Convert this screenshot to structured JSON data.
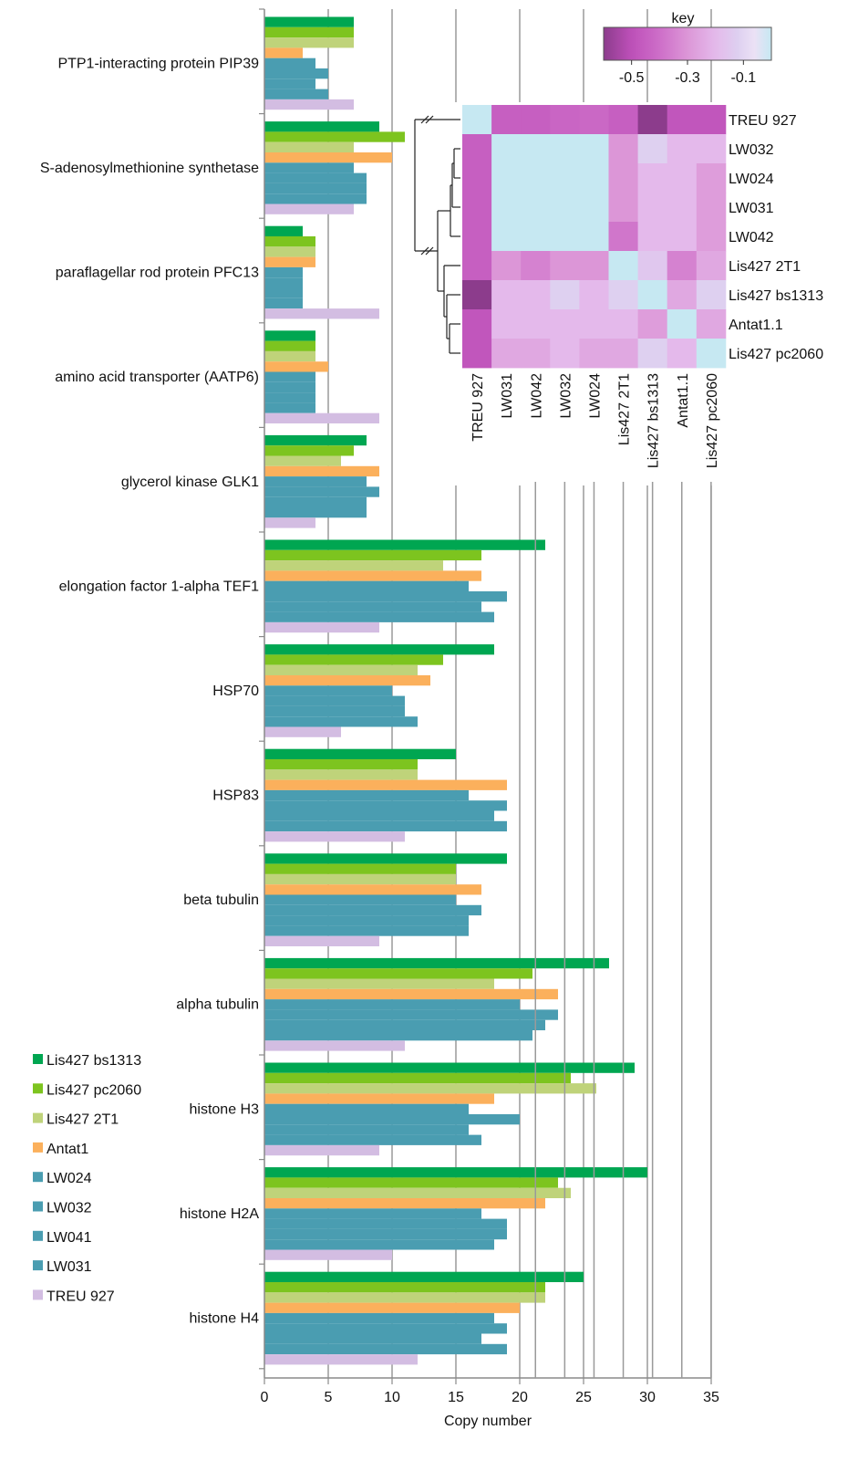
{
  "chart_data": [
    {
      "type": "bar",
      "orientation": "horizontal",
      "xlabel": "Copy number",
      "xlim": [
        0,
        35
      ],
      "xticks": [
        "0",
        "5",
        "10",
        "15",
        "20",
        "25",
        "30",
        "35"
      ],
      "grid": "vertical",
      "legend_position": "bottom-left",
      "categories": [
        "PTP1-interacting protein PIP39",
        "S-adenosylmethionine synthetase",
        "paraflagellar rod protein PFC13",
        "amino acid transporter (AATP6)",
        "glycerol kinase GLK1",
        "elongation factor 1-alpha TEF1",
        "HSP70",
        "HSP83",
        "beta tubulin",
        "alpha tubulin",
        "histone H3",
        "histone H2A",
        "histone H4"
      ],
      "series": [
        {
          "name": "Lis427 bs1313",
          "color": "#00a651",
          "values": [
            7,
            9,
            3,
            4,
            8,
            22,
            18,
            15,
            19,
            27,
            29,
            30,
            25
          ]
        },
        {
          "name": "Lis427 pc2060",
          "color": "#7dc41f",
          "values": [
            7,
            11,
            4,
            4,
            7,
            17,
            14,
            12,
            15,
            21,
            24,
            23,
            22
          ]
        },
        {
          "name": "Lis427 2T1",
          "color": "#bfd37a",
          "values": [
            7,
            7,
            4,
            4,
            6,
            14,
            12,
            12,
            15,
            18,
            26,
            24,
            22
          ]
        },
        {
          "name": "Antat1",
          "color": "#fbb05c",
          "values": [
            3,
            10,
            4,
            5,
            9,
            17,
            13,
            19,
            17,
            23,
            18,
            22,
            20
          ]
        },
        {
          "name": "LW024",
          "color": "#4a9db1",
          "values": [
            4,
            7,
            3,
            4,
            8,
            16,
            10,
            16,
            15,
            20,
            16,
            17,
            18
          ]
        },
        {
          "name": "LW032",
          "color": "#4a9db1",
          "values": [
            5,
            8,
            3,
            4,
            9,
            19,
            11,
            19,
            17,
            23,
            20,
            19,
            19
          ]
        },
        {
          "name": "LW041",
          "color": "#4a9db1",
          "values": [
            4,
            8,
            3,
            4,
            8,
            17,
            11,
            18,
            16,
            22,
            16,
            19,
            17
          ]
        },
        {
          "name": "LW031",
          "color": "#4a9db1",
          "values": [
            5,
            8,
            3,
            4,
            8,
            18,
            12,
            19,
            16,
            21,
            17,
            18,
            19
          ]
        },
        {
          "name": "TREU 927",
          "color": "#d3bde2",
          "values": [
            7,
            7,
            9,
            9,
            4,
            9,
            6,
            11,
            9,
            11,
            9,
            10,
            12
          ]
        }
      ]
    },
    {
      "type": "heatmap",
      "key_title": "key",
      "key_ticks": [
        "-0.5",
        "-0.3",
        "-0.1"
      ],
      "key_range": [
        -0.6,
        0.0
      ],
      "column_labels": [
        "TREU 927",
        "LW031",
        "LW042",
        "LW032",
        "LW024",
        "Lis427 2T1",
        "Lis427 bs1313",
        "Antat1.1",
        "Lis427 pc2060"
      ],
      "row_labels": [
        "TREU 927",
        "LW032",
        "LW024",
        "LW031",
        "LW042",
        "Lis427 2T1",
        "Lis427 bs1313",
        "Antat1.1",
        "Lis427 pc2060"
      ],
      "values": [
        [
          0.0,
          -0.45,
          -0.45,
          -0.43,
          -0.42,
          -0.45,
          -0.6,
          -0.48,
          -0.48
        ],
        [
          -0.45,
          0.0,
          0.0,
          0.0,
          0.0,
          -0.3,
          -0.12,
          -0.2,
          -0.2
        ],
        [
          -0.45,
          0.0,
          0.0,
          0.0,
          0.0,
          -0.3,
          -0.2,
          -0.2,
          -0.28
        ],
        [
          -0.45,
          0.0,
          0.0,
          0.0,
          0.0,
          -0.3,
          -0.2,
          -0.2,
          -0.28
        ],
        [
          -0.45,
          0.0,
          0.0,
          0.0,
          0.0,
          -0.38,
          -0.2,
          -0.2,
          -0.28
        ],
        [
          -0.45,
          -0.3,
          -0.35,
          -0.3,
          -0.3,
          0.0,
          -0.15,
          -0.35,
          -0.25
        ],
        [
          -0.6,
          -0.2,
          -0.2,
          -0.12,
          -0.2,
          -0.12,
          0.0,
          -0.25,
          -0.12
        ],
        [
          -0.48,
          -0.2,
          -0.2,
          -0.2,
          -0.2,
          -0.2,
          -0.28,
          0.0,
          -0.25
        ],
        [
          -0.48,
          -0.25,
          -0.25,
          -0.2,
          -0.25,
          -0.25,
          -0.12,
          -0.2,
          0.0
        ]
      ]
    }
  ]
}
